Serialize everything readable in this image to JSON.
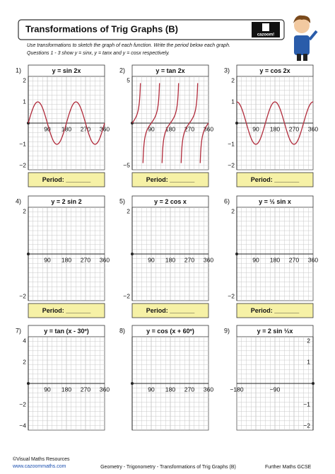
{
  "header": {
    "title": "Transformations of Trig Graphs (B)",
    "logo": "cazoom!",
    "instructions": [
      "Use transformations to sketch the graph of each function. Write the period below each graph.",
      "Questions 1 - 3 show y = sinx, y = tanx and y = cosx respectively."
    ]
  },
  "panels": [
    {
      "number": "1)",
      "equation": "y = sin 2x",
      "xticks": [
        90,
        180,
        270,
        360
      ],
      "yticks": [
        2,
        1,
        {
          "value": -1,
          "label": "−1"
        },
        {
          "value": -2,
          "label": "−2"
        }
      ],
      "period": "Period: _______"
    },
    {
      "number": "2)",
      "equation": "y = tan 2x",
      "xticks": [
        90,
        180,
        270,
        360
      ],
      "yticks": [
        5,
        {
          "value": -5,
          "label": "−5"
        }
      ],
      "period": "Period: _______"
    },
    {
      "number": "3)",
      "equation": "y = cos 2x",
      "xticks": [
        90,
        180,
        270,
        360
      ],
      "yticks": [
        2,
        1,
        {
          "value": -1,
          "label": "−1"
        },
        {
          "value": -2,
          "label": "−2"
        }
      ],
      "period": "Period: _______"
    },
    {
      "number": "4)",
      "equation": "y = 2 sin 2",
      "xticks": [
        90,
        180,
        270,
        360
      ],
      "yticks": [
        2,
        {
          "value": -2,
          "label": "−2"
        }
      ],
      "period": "Period: _______"
    },
    {
      "number": "5)",
      "equation": "y = 2 cos x",
      "xticks": [
        90,
        180,
        270,
        360
      ],
      "yticks": [
        2,
        {
          "value": -2,
          "label": "−2"
        }
      ],
      "period": "Period: _______"
    },
    {
      "number": "6)",
      "equation": "y = ½ sin x",
      "xticks": [
        90,
        180,
        270,
        360
      ],
      "yticks": [
        2,
        {
          "value": -2,
          "label": "−2"
        }
      ],
      "period": "Period: _______"
    },
    {
      "number": "7)",
      "equation": "y = tan (x - 30º)",
      "xticks": [
        90,
        180,
        270,
        360
      ],
      "yticks": [
        4,
        2,
        {
          "value": -2,
          "label": "−2"
        },
        {
          "value": -4,
          "label": "−4"
        }
      ]
    },
    {
      "number": "8)",
      "equation": "y = cos (x + 60º)",
      "xticks": [
        90,
        180,
        270,
        360
      ],
      "yticks": []
    },
    {
      "number": "9)",
      "equation": "y = 2 sin ⅓x",
      "xticks": [
        {
          "value": -180,
          "label": "−180"
        },
        {
          "value": -90,
          "label": "−90"
        }
      ],
      "yticks": [
        2,
        1,
        {
          "value": -1,
          "label": "−1"
        },
        {
          "value": -2,
          "label": "−2"
        }
      ]
    }
  ],
  "footer": {
    "copyright": "©Visual Maths Resources",
    "website": "www.cazoommaths.com",
    "topic": "Geometry - Trigonometry - Transformations of Trig Graphs (B)",
    "course": "Further Maths GCSE"
  }
}
